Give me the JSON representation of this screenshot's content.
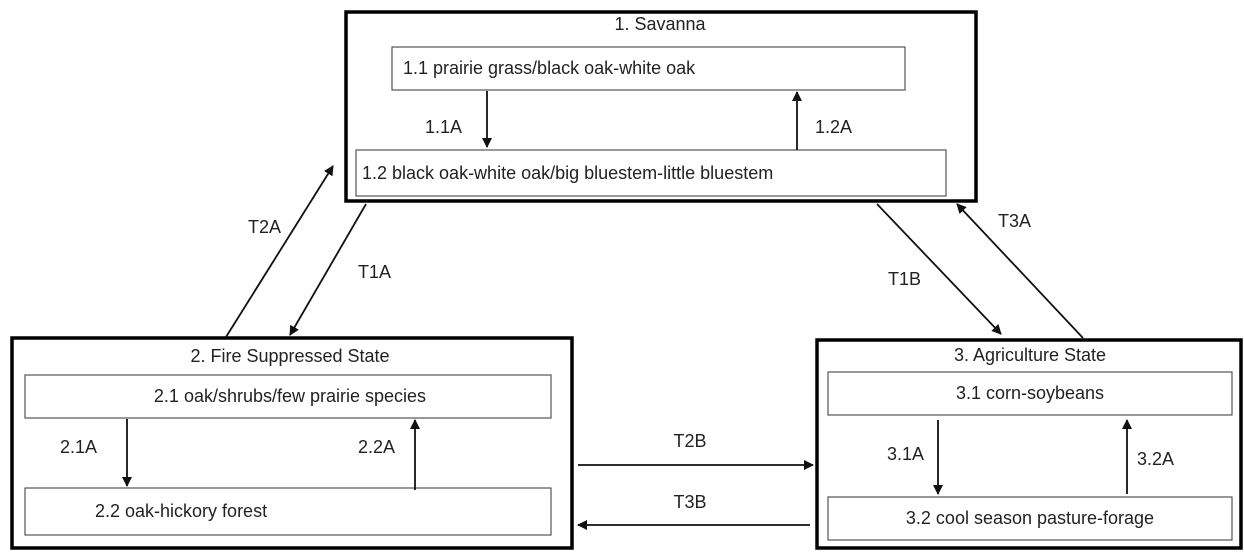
{
  "states": [
    {
      "title": "1. Savanna",
      "communities": [
        "1.1 prairie grass/black oak-white oak",
        "1.2 black oak-white oak/big bluestem-little bluestem"
      ],
      "pathways": [
        "1.1A",
        "1.2A"
      ]
    },
    {
      "title": "2. Fire Suppressed State",
      "communities": [
        "2.1 oak/shrubs/few prairie species",
        "2.2 oak-hickory forest"
      ],
      "pathways": [
        "2.1A",
        "2.2A"
      ]
    },
    {
      "title": "3. Agriculture State",
      "communities": [
        "3.1 corn-soybeans",
        "3.2 cool season pasture-forage"
      ],
      "pathways": [
        "3.1A",
        "3.2A"
      ]
    }
  ],
  "transitions": [
    "T2A",
    "T1A",
    "T1B",
    "T3A",
    "T2B",
    "T3B"
  ]
}
